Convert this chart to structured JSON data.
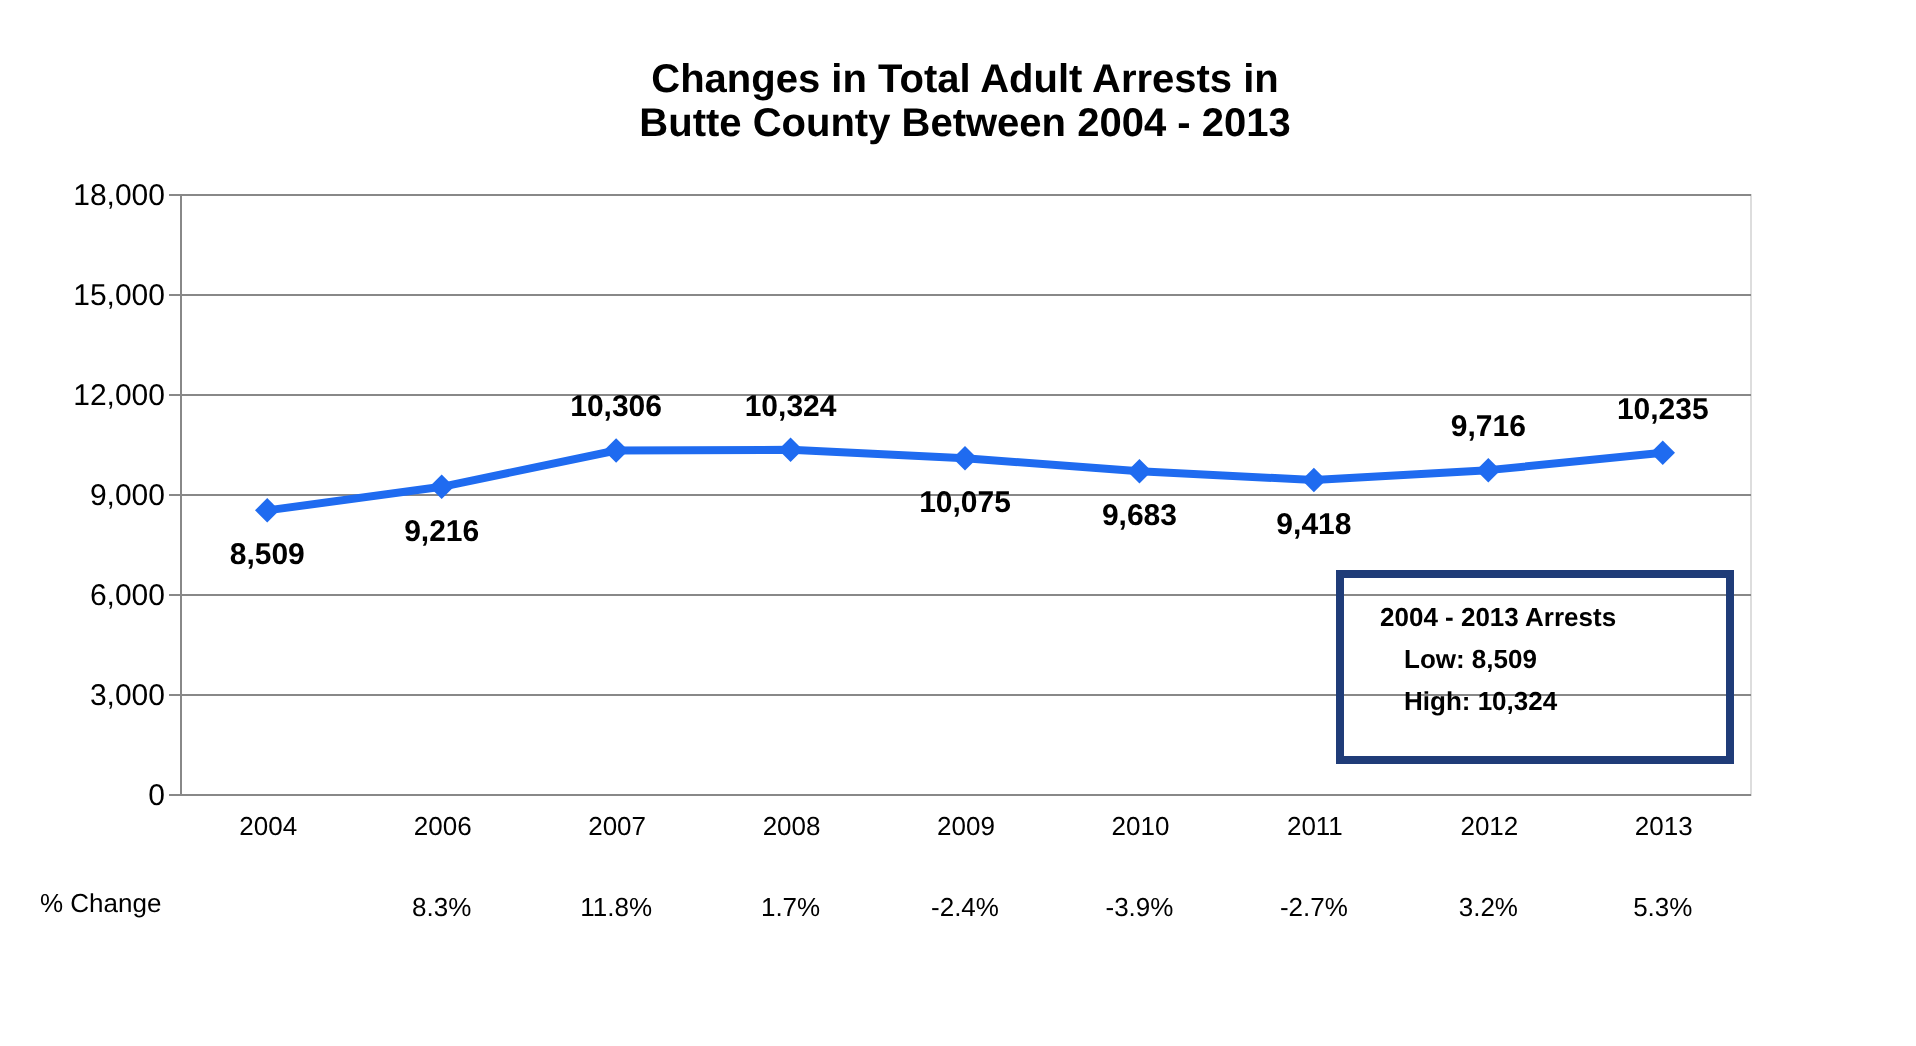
{
  "chart_data": {
    "type": "line",
    "title": [
      "Changes in Total Adult  Arrests in",
      "Butte County Between 2004 - 2013"
    ],
    "categories": [
      "2004",
      "2006",
      "2007",
      "2008",
      "2009",
      "2010",
      "2011",
      "2012",
      "2013"
    ],
    "series": [
      {
        "color": "#1f6bf0",
        "values": [
          8509,
          9216,
          10306,
          10324,
          10075,
          9683,
          9418,
          9716,
          10235
        ]
      }
    ],
    "ylim": [
      0,
      18000
    ],
    "yticks": [
      {
        "value": 0,
        "label": "0"
      },
      {
        "value": 3000,
        "label": "3,000"
      },
      {
        "value": 6000,
        "label": "6,000"
      },
      {
        "value": 9000,
        "label": "9,000"
      },
      {
        "value": 12000,
        "label": "12,000"
      },
      {
        "value": 15000,
        "label": "15,000"
      },
      {
        "value": 18000,
        "label": "18,000"
      }
    ],
    "value_labels": [
      "8,509",
      "9,216",
      "10,306",
      "10,324",
      "10,075",
      "9,683",
      "9,418",
      "9,716",
      "10,235"
    ],
    "grid": "y",
    "marker": "diamond",
    "line_style": "solid",
    "annotations": [
      "% Change",
      "8.3%",
      "11.8%",
      "1.7%",
      "-2.4%",
      "-3.9%",
      "-2.7%",
      "3.2%",
      "5.3%",
      "2004 - 2013 Arrests",
      "Low:    8,509",
      "High:  10,324"
    ]
  }
}
